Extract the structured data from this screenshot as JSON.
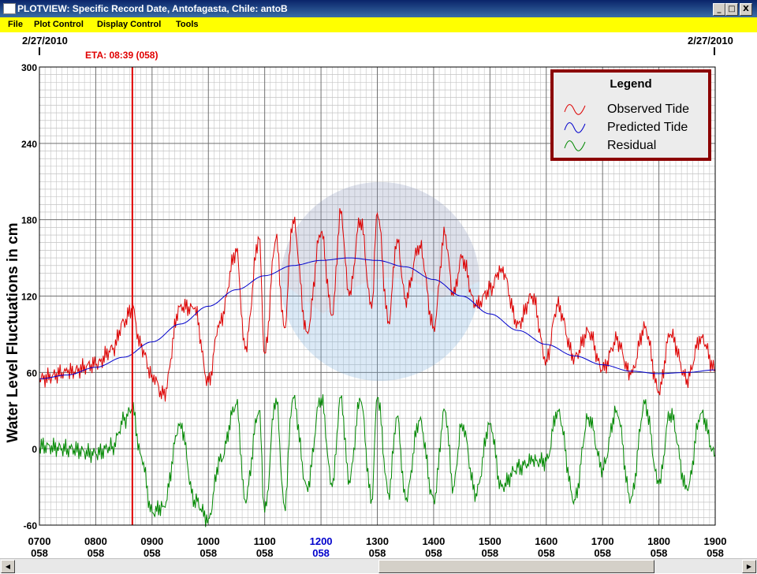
{
  "window": {
    "title": "PLOTVIEW: Specific Record Date, Antofagasta, Chile: antoB",
    "buttons": [
      "_",
      "□",
      "X"
    ]
  },
  "menu": [
    "File",
    "Plot Control",
    "Display Control",
    "Tools"
  ],
  "dates": {
    "left": "2/27/2010",
    "right": "2/27/2010"
  },
  "eta": {
    "label": "ETA: 08:39 (058)",
    "time_hours": 8.65,
    "color": "#e00000"
  },
  "icons": {
    "minimize": "minimize-icon",
    "maximize": "maximize-icon",
    "close": "close-icon",
    "scroll_left": "arrow-left-icon",
    "scroll_right": "arrow-right-icon"
  },
  "legend": {
    "title": "Legend",
    "entries": [
      "Observed Tide",
      "Predicted Tide",
      "Residual"
    ]
  },
  "chart_data": {
    "type": "line",
    "ylabel": "Water Level Fluctuations in cm",
    "ylim": [
      -60,
      300
    ],
    "yticks": [
      -60,
      0,
      60,
      120,
      180,
      240,
      300
    ],
    "xlim": [
      7,
      19
    ],
    "xticks": [
      {
        "x": 7,
        "time": "0700",
        "day": "058"
      },
      {
        "x": 8,
        "time": "0800",
        "day": "058"
      },
      {
        "x": 9,
        "time": "0900",
        "day": "058"
      },
      {
        "x": 10,
        "time": "1000",
        "day": "058"
      },
      {
        "x": 11,
        "time": "1100",
        "day": "058"
      },
      {
        "x": 12,
        "time": "1200",
        "day": "058",
        "highlight": true
      },
      {
        "x": 13,
        "time": "1300",
        "day": "058"
      },
      {
        "x": 14,
        "time": "1400",
        "day": "058"
      },
      {
        "x": 15,
        "time": "1500",
        "day": "058"
      },
      {
        "x": 16,
        "time": "1600",
        "day": "058"
      },
      {
        "x": 17,
        "time": "1700",
        "day": "058"
      },
      {
        "x": 18,
        "time": "1800",
        "day": "058"
      },
      {
        "x": 19,
        "time": "1900",
        "day": "058"
      }
    ],
    "grid": true,
    "legend_position": "top-right",
    "colors": {
      "observed": "#dd0000",
      "predicted": "#0000cc",
      "residual": "#008800",
      "highlight_tick": "#0000cc"
    },
    "series": [
      {
        "name": "Observed Tide",
        "x": [
          7.0,
          7.5,
          8.0,
          8.3,
          8.5,
          8.65,
          8.8,
          9.0,
          9.2,
          9.5,
          9.75,
          10.0,
          10.2,
          10.5,
          10.65,
          10.9,
          11.0,
          11.2,
          11.35,
          11.5,
          11.75,
          12.0,
          12.2,
          12.35,
          12.5,
          12.7,
          12.9,
          13.0,
          13.2,
          13.35,
          13.5,
          13.75,
          14.0,
          14.2,
          14.35,
          14.5,
          14.75,
          15.0,
          15.2,
          15.5,
          15.75,
          16.0,
          16.2,
          16.5,
          16.75,
          17.0,
          17.25,
          17.5,
          17.75,
          18.0,
          18.2,
          18.5,
          18.75,
          19.0
        ],
        "y": [
          55,
          60,
          66,
          78,
          100,
          110,
          80,
          58,
          42,
          112,
          110,
          52,
          100,
          155,
          78,
          165,
          75,
          165,
          95,
          180,
          92,
          170,
          105,
          185,
          120,
          180,
          110,
          185,
          100,
          165,
          118,
          160,
          96,
          168,
          120,
          150,
          112,
          125,
          142,
          98,
          120,
          70,
          112,
          72,
          92,
          62,
          85,
          58,
          95,
          45,
          90,
          55,
          88,
          62
        ]
      },
      {
        "name": "Predicted Tide",
        "x": [
          7.0,
          7.5,
          8.0,
          8.5,
          9.0,
          9.5,
          10.0,
          10.5,
          11.0,
          11.5,
          12.0,
          12.5,
          13.0,
          13.5,
          14.0,
          14.5,
          15.0,
          15.5,
          16.0,
          16.5,
          17.0,
          17.5,
          18.0,
          18.5,
          19.0
        ],
        "y": [
          55,
          58,
          64,
          72,
          84,
          98,
          112,
          125,
          136,
          144,
          148,
          150,
          148,
          143,
          133,
          120,
          106,
          93,
          82,
          73,
          66,
          61,
          59,
          60,
          62
        ]
      },
      {
        "name": "Residual",
        "x": [
          7.0,
          7.5,
          8.0,
          8.3,
          8.5,
          8.65,
          8.8,
          9.0,
          9.2,
          9.5,
          9.75,
          10.0,
          10.2,
          10.5,
          10.65,
          10.9,
          11.0,
          11.2,
          11.35,
          11.5,
          11.75,
          12.0,
          12.2,
          12.35,
          12.5,
          12.7,
          12.9,
          13.0,
          13.2,
          13.35,
          13.5,
          13.75,
          14.0,
          14.2,
          14.35,
          14.5,
          14.75,
          15.0,
          15.2,
          15.5,
          15.75,
          16.0,
          16.2,
          16.5,
          16.75,
          17.0,
          17.25,
          17.5,
          17.75,
          18.0,
          18.2,
          18.5,
          18.75,
          19.0
        ],
        "y": [
          2,
          0,
          -4,
          2,
          22,
          32,
          -5,
          -50,
          -45,
          20,
          -40,
          -55,
          -10,
          35,
          -40,
          30,
          -50,
          40,
          -45,
          40,
          -30,
          40,
          -30,
          40,
          -25,
          38,
          -40,
          40,
          -35,
          25,
          -40,
          22,
          -40,
          30,
          -30,
          20,
          -35,
          20,
          -30,
          -15,
          -10,
          -10,
          30,
          -40,
          25,
          -15,
          30,
          -40,
          35,
          -28,
          28,
          -32,
          28,
          -5
        ]
      }
    ]
  }
}
